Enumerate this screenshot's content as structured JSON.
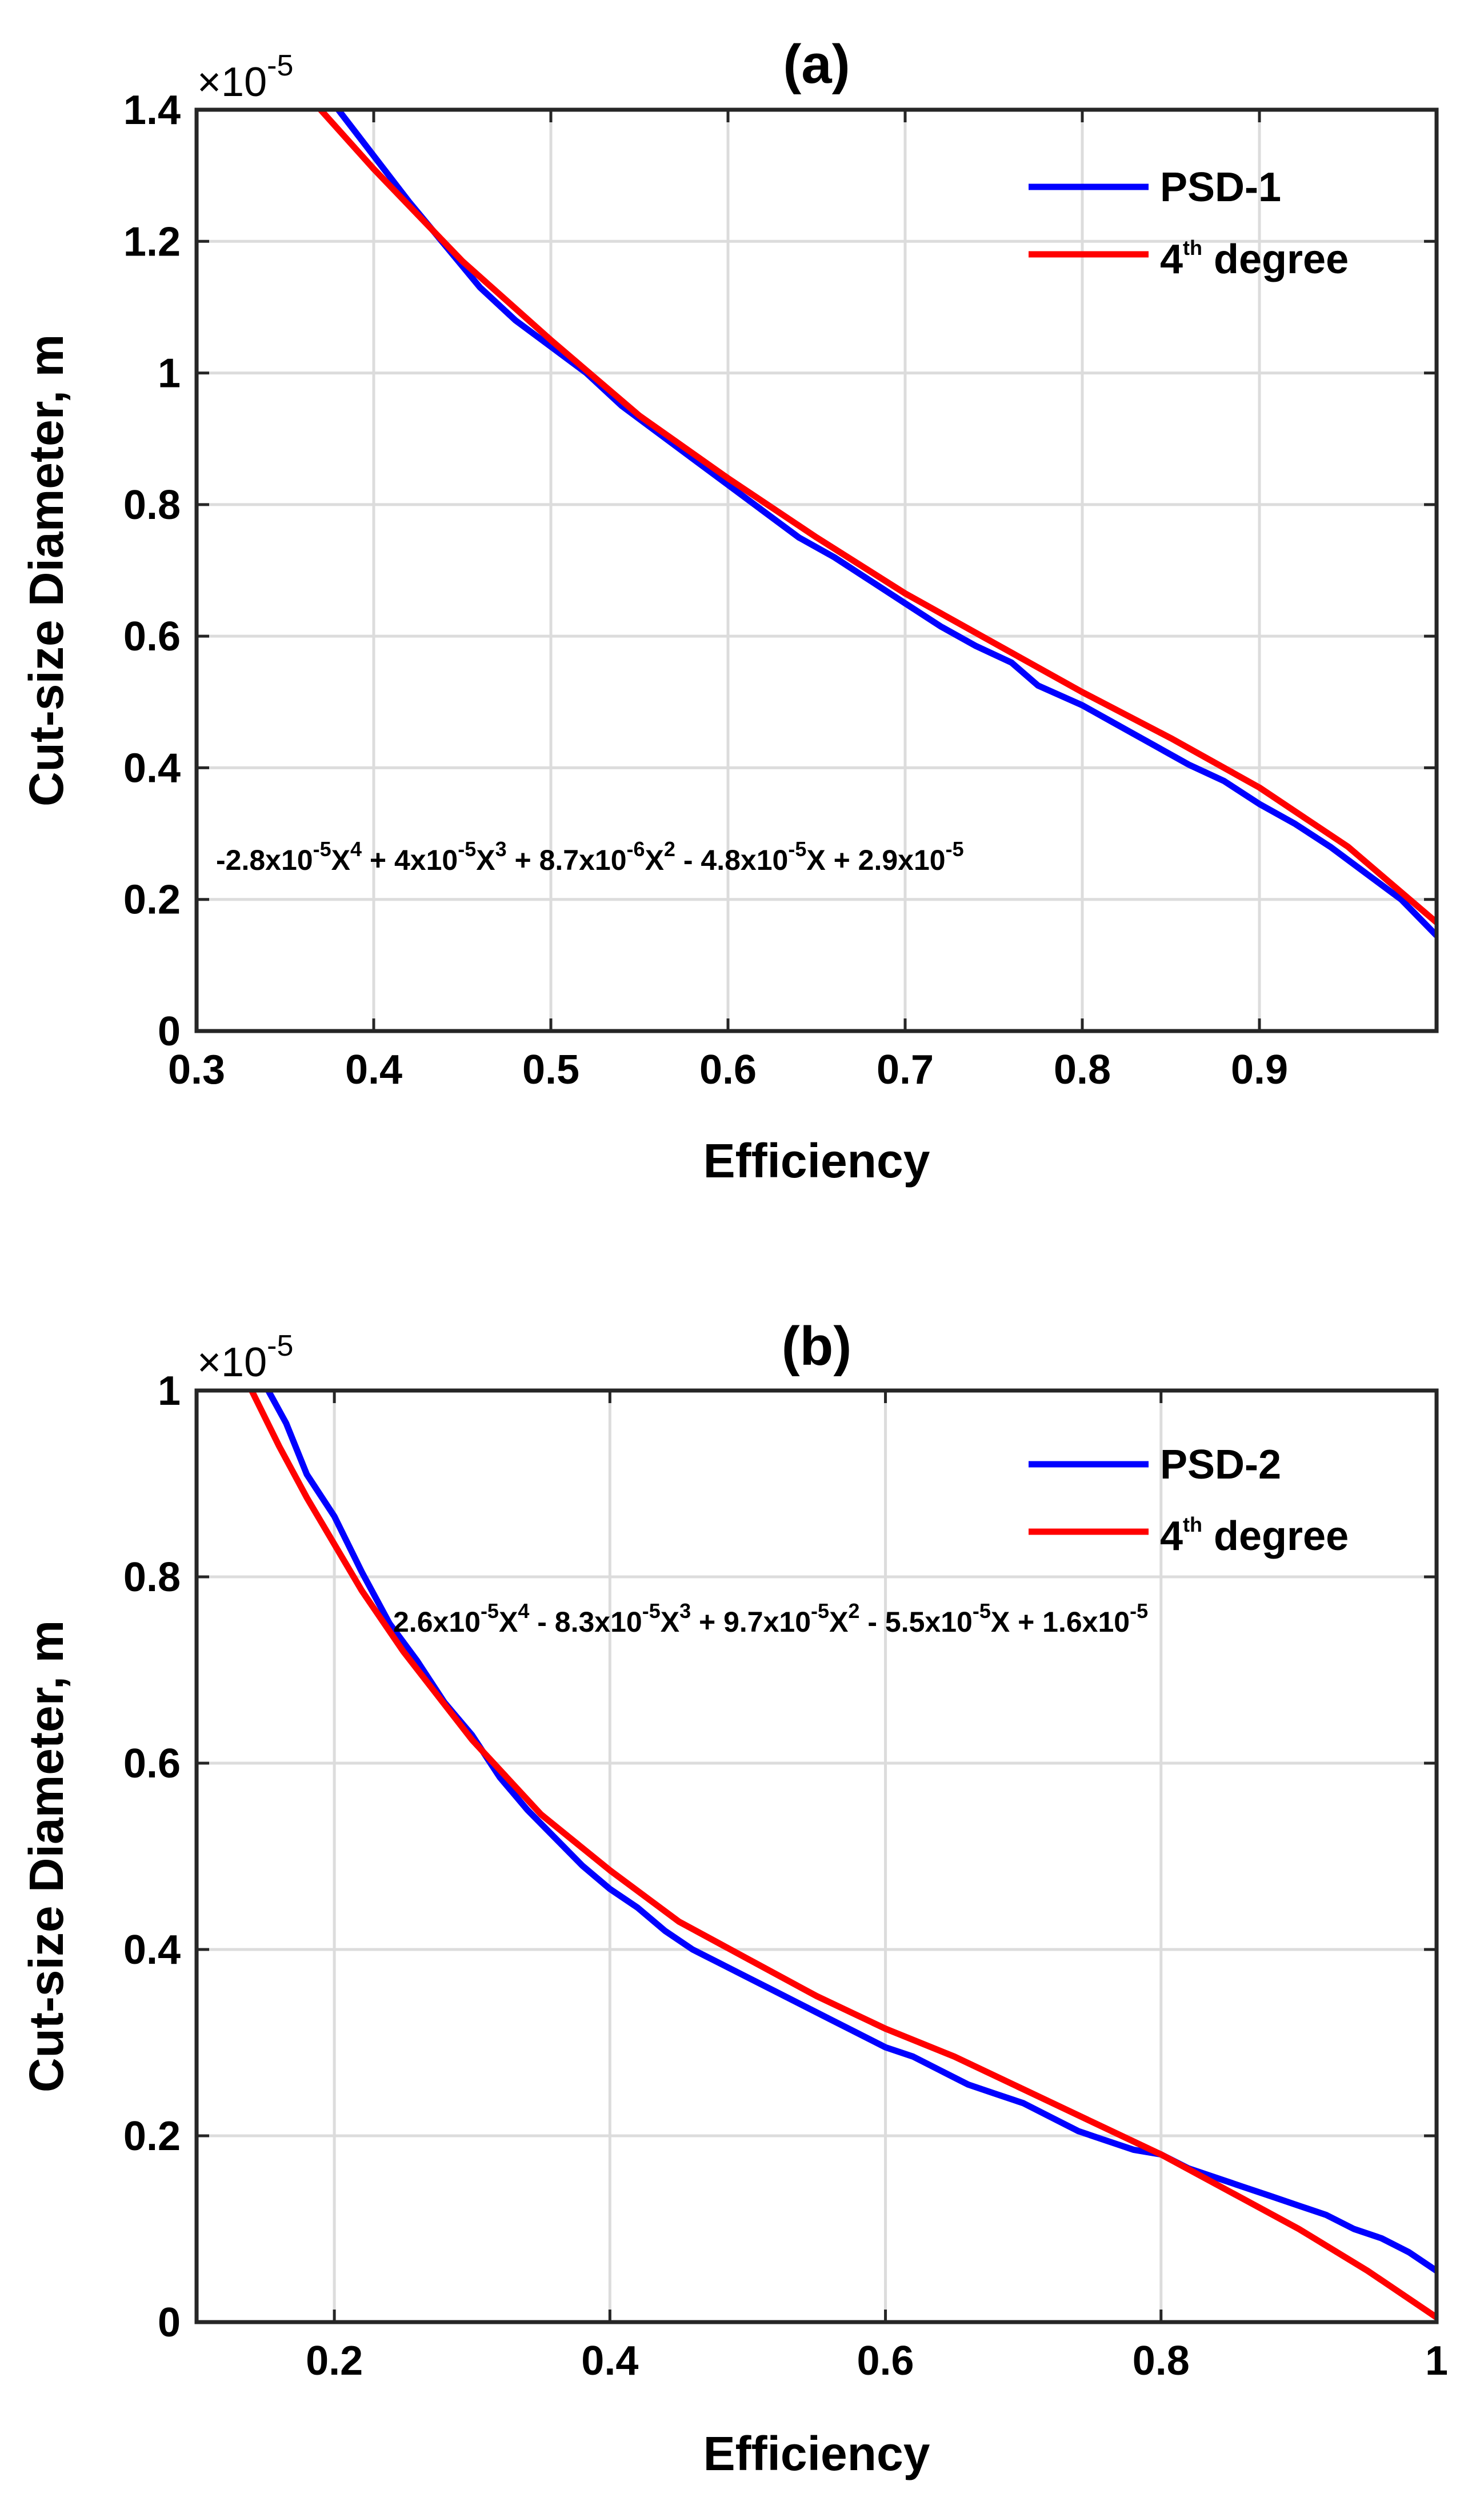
{
  "chart_data": [
    {
      "type": "line",
      "title": "(a)",
      "xlabel": "Efficiency",
      "ylabel": "Cut-size Diameter, m",
      "y_exponent_base": "×10",
      "y_exponent": "-5",
      "xlim": [
        0.3,
        1.0
      ],
      "ylim": [
        0,
        1.4
      ],
      "x_ticks": [
        0.3,
        0.4,
        0.5,
        0.6,
        0.7,
        0.8,
        0.9
      ],
      "x_tick_labels": [
        "0.3",
        "0.4",
        "0.5",
        "0.6",
        "0.7",
        "0.8",
        "0.9"
      ],
      "y_ticks": [
        0,
        0.2,
        0.4,
        0.6,
        0.8,
        1.0,
        1.2,
        1.4
      ],
      "y_tick_labels": [
        "0",
        "0.2",
        "0.4",
        "0.6",
        "0.8",
        "1",
        "1.2",
        "1.4"
      ],
      "grid": true,
      "legend_position": "top-right",
      "legend": {
        "series1": "PSD-1",
        "series2_base": "4",
        "series2_sup": "th",
        "series2_rest": " degree"
      },
      "equation": {
        "t1": "-2.8x10",
        "e1": "-5",
        "t2": "X",
        "e2": "4",
        "t3": " + 4x10",
        "e3": "-5",
        "t4": "X",
        "e4": "3",
        "t5": " + 8.7x10",
        "e5": "-6",
        "t6": "X",
        "e6": "2",
        "t7": " - 4.8x10",
        "e7": "-5",
        "t8": "X + 2.9x10",
        "e8": "-5"
      },
      "series": [
        {
          "name": "PSD-1",
          "color": "#0000ff",
          "x": [
            0.38,
            0.4,
            0.42,
            0.44,
            0.46,
            0.48,
            0.5,
            0.52,
            0.54,
            0.56,
            0.58,
            0.6,
            0.62,
            0.64,
            0.66,
            0.68,
            0.7,
            0.72,
            0.74,
            0.76,
            0.775,
            0.8,
            0.82,
            0.84,
            0.86,
            0.88,
            0.9,
            0.92,
            0.94,
            0.96,
            0.98,
            1.0
          ],
          "y": [
            1.4,
            1.33,
            1.26,
            1.195,
            1.13,
            1.08,
            1.04,
            1.0,
            0.95,
            0.91,
            0.87,
            0.83,
            0.79,
            0.75,
            0.72,
            0.685,
            0.65,
            0.615,
            0.585,
            0.56,
            0.525,
            0.495,
            0.465,
            0.435,
            0.405,
            0.38,
            0.345,
            0.315,
            0.28,
            0.24,
            0.2,
            0.145
          ]
        },
        {
          "name": "4th degree",
          "color": "#ff0000",
          "x": [
            0.37,
            0.4,
            0.45,
            0.5,
            0.55,
            0.6,
            0.65,
            0.7,
            0.75,
            0.8,
            0.85,
            0.9,
            0.95,
            1.0
          ],
          "y": [
            1.4,
            1.31,
            1.17,
            1.05,
            0.935,
            0.84,
            0.75,
            0.665,
            0.59,
            0.515,
            0.445,
            0.37,
            0.28,
            0.165
          ]
        }
      ]
    },
    {
      "type": "line",
      "title": "(b)",
      "xlabel": "Efficiency",
      "ylabel": "Cut-size Diameter, m",
      "y_exponent_base": "×10",
      "y_exponent": "-5",
      "xlim": [
        0.1,
        1.0
      ],
      "ylim": [
        0,
        1.0
      ],
      "x_ticks": [
        0.2,
        0.4,
        0.6,
        0.8,
        1.0
      ],
      "x_tick_labels": [
        "0.2",
        "0.4",
        "0.6",
        "0.8",
        "1"
      ],
      "y_ticks": [
        0,
        0.2,
        0.4,
        0.6,
        0.8,
        1.0
      ],
      "y_tick_labels": [
        "0",
        "0.2",
        "0.4",
        "0.6",
        "0.8",
        "1"
      ],
      "grid": true,
      "legend_position": "top-right",
      "legend": {
        "series1": "PSD-2",
        "series2_base": "4",
        "series2_sup": "th",
        "series2_rest": " degree"
      },
      "equation": {
        "t1": "2.6x10",
        "e1": "-5",
        "t2": "X",
        "e2": "4",
        "t3": " - 8.3x10",
        "e3": "-5",
        "t4": "X",
        "e4": "3",
        "t5": " + 9.7x10",
        "e5": "-5",
        "t6": "X",
        "e6": "2",
        "t7": " - 5.5x10",
        "e7": "-5",
        "t8": "X + 1.6x10",
        "e8": "-5"
      },
      "series": [
        {
          "name": "PSD-2",
          "color": "#0000ff",
          "x": [
            0.152,
            0.165,
            0.18,
            0.2,
            0.22,
            0.24,
            0.26,
            0.28,
            0.3,
            0.32,
            0.34,
            0.36,
            0.38,
            0.4,
            0.42,
            0.44,
            0.46,
            0.48,
            0.5,
            0.52,
            0.54,
            0.56,
            0.58,
            0.6,
            0.62,
            0.64,
            0.66,
            0.68,
            0.7,
            0.72,
            0.74,
            0.76,
            0.78,
            0.8,
            0.82,
            0.84,
            0.86,
            0.88,
            0.9,
            0.92,
            0.94,
            0.96,
            0.98,
            1.0
          ],
          "y": [
            1.0,
            0.965,
            0.91,
            0.865,
            0.805,
            0.75,
            0.71,
            0.665,
            0.63,
            0.585,
            0.55,
            0.52,
            0.49,
            0.465,
            0.445,
            0.42,
            0.4,
            0.385,
            0.37,
            0.355,
            0.34,
            0.325,
            0.31,
            0.295,
            0.285,
            0.27,
            0.255,
            0.245,
            0.235,
            0.22,
            0.205,
            0.195,
            0.185,
            0.18,
            0.165,
            0.155,
            0.145,
            0.135,
            0.125,
            0.115,
            0.1,
            0.09,
            0.075,
            0.055
          ]
        },
        {
          "name": "4th degree",
          "color": "#ff0000",
          "x": [
            0.14,
            0.16,
            0.18,
            0.2,
            0.22,
            0.25,
            0.3,
            0.35,
            0.4,
            0.45,
            0.5,
            0.55,
            0.6,
            0.65,
            0.7,
            0.75,
            0.8,
            0.85,
            0.9,
            0.95,
            1.0
          ],
          "y": [
            1.0,
            0.94,
            0.885,
            0.835,
            0.785,
            0.72,
            0.625,
            0.545,
            0.485,
            0.43,
            0.39,
            0.35,
            0.315,
            0.285,
            0.25,
            0.215,
            0.18,
            0.14,
            0.1,
            0.055,
            0.005
          ]
        }
      ]
    }
  ]
}
